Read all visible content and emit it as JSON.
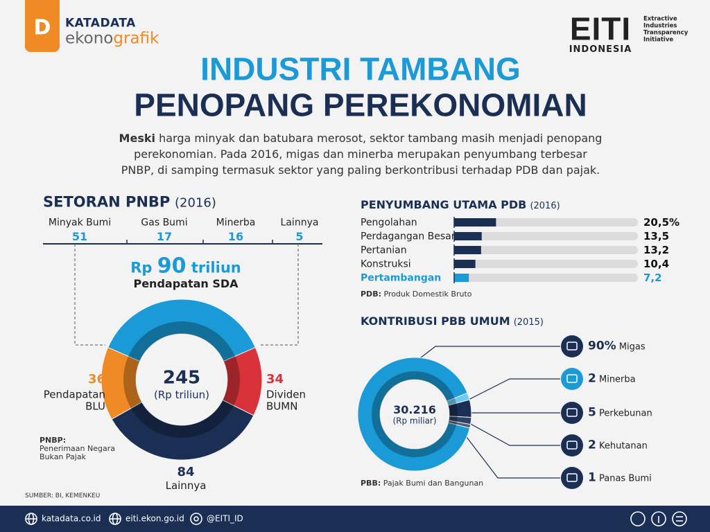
{
  "header": {
    "logo_letter": "D",
    "brand": "KATADATA",
    "brand_sub": [
      "ekono",
      "grafik"
    ],
    "partner": "EITI",
    "partner_sub": "INDONESIA",
    "partner_desc": [
      "Extractive",
      "Industries",
      "Transparency",
      "Initiative"
    ]
  },
  "title": [
    "INDUSTRI TAMBANG",
    "PENOPANG PEREKONOMIAN"
  ],
  "intro": {
    "lead": "Meski",
    "lines": [
      "harga minyak dan batubara merosot, sektor tambang masih menjadi penopang",
      "perekonomian. Pada 2016, migas dan minerba merupakan penyumbang terbesar",
      "PNBP, di samping termasuk sektor yang paling berkontribusi terhadap PDB dan pajak."
    ]
  },
  "chart_data": [
    {
      "type": "pie",
      "title": "SETORAN PNBP",
      "period": "(2016)",
      "total": 245,
      "total_unit": "(Rp triliun)",
      "categories": [
        "Pendapatan SDA",
        "Dividen BUMN",
        "Lainnya",
        "Pendapatan BLU"
      ],
      "values": [
        90,
        34,
        84,
        36
      ],
      "colors": [
        "#1a9ad6",
        "#d8333a",
        "#1b2f55",
        "#f08a24"
      ],
      "value_prefix": "Rp",
      "value_unit": "triliun",
      "breakdown": {
        "categories": [
          "Minyak Bumi",
          "Gas Bumi",
          "Minerba",
          "Lainnya"
        ],
        "values": [
          51,
          17,
          16,
          5
        ]
      },
      "note": {
        "term": "PNBP:",
        "text": "Penerimaan Negara Bukan Pajak"
      }
    },
    {
      "type": "bar",
      "orientation": "horizontal",
      "title": "PENYUMBANG UTAMA PDB",
      "period": "(2016)",
      "categories": [
        "Pengolahan",
        "Perdagangan Besar",
        "Pertanian",
        "Konstruksi",
        "Pertambangan"
      ],
      "values": [
        20.5,
        13.5,
        13.2,
        10.4,
        7.2
      ],
      "value_labels": [
        "20,5%",
        "13,5",
        "13,2",
        "10,4",
        "7,2"
      ],
      "xlim": [
        0,
        90
      ],
      "color": "#1b2f55",
      "highlight_index": 4,
      "highlight_color": "#1a9ad6",
      "track_color": "#dcdcdc",
      "note": {
        "term": "PDB:",
        "text": "Produk Domestik Bruto"
      }
    },
    {
      "type": "pie",
      "title": "KONTRIBUSI PBB UMUM",
      "period": "(2015)",
      "total": 30216,
      "total_label": "30.216",
      "total_unit": "(Rp miliar)",
      "categories": [
        "Migas",
        "Minerba",
        "Perkebunan",
        "Kehutanan",
        "Panas Bumi"
      ],
      "values": [
        90,
        2,
        5,
        2,
        1
      ],
      "value_labels": [
        "90%",
        "2",
        "5",
        "2",
        "1"
      ],
      "colors": [
        "#1a9ad6",
        "#6ccbf2",
        "#1b2f55",
        "#2f4266",
        "#4a5b7c"
      ],
      "note": {
        "term": "PBB:",
        "text": "Pajak Bumi dan Bangunan"
      }
    }
  ],
  "source": "SUMBER: BI, KEMENKEU",
  "footer": [
    "katadata.co.id",
    "eiti.ekon.go.id",
    "@EITI_ID"
  ]
}
